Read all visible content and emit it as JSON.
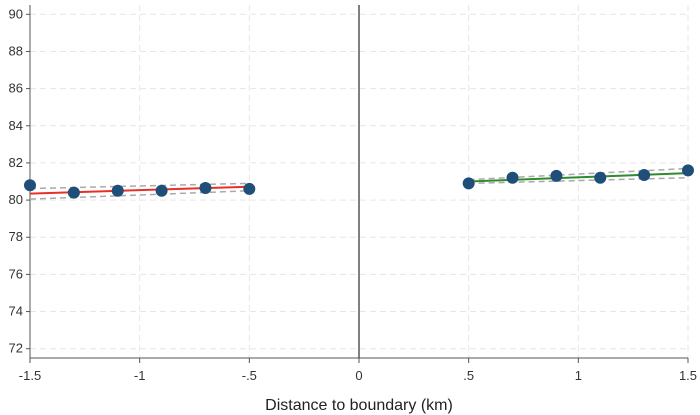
{
  "chart_data": {
    "type": "scatter",
    "title": "",
    "xlabel": "Distance to boundary (km)",
    "ylabel": "",
    "xlim": [
      -1.5,
      1.5
    ],
    "ylim": [
      71.5,
      90.5
    ],
    "x_ticks": [
      -1.5,
      -1,
      -0.5,
      0,
      0.5,
      1,
      1.5
    ],
    "x_tick_labels": [
      "-1.5",
      "-1",
      "-.5",
      "0",
      ".5",
      "1",
      "1.5"
    ],
    "y_ticks": [
      72,
      74,
      76,
      78,
      80,
      82,
      84,
      86,
      88,
      90
    ],
    "y_tick_labels": [
      "72",
      "74",
      "76",
      "78",
      "80",
      "82",
      "84",
      "86",
      "88",
      "90"
    ],
    "grid": true,
    "cutoff_line_x": 0,
    "series": [
      {
        "side": "left",
        "points": [
          {
            "x": -1.5,
            "y": 80.8
          },
          {
            "x": -1.3,
            "y": 80.4
          },
          {
            "x": -1.1,
            "y": 80.5
          },
          {
            "x": -0.9,
            "y": 80.5
          },
          {
            "x": -0.7,
            "y": 80.65
          },
          {
            "x": -0.5,
            "y": 80.6
          }
        ],
        "fit": {
          "x": [
            -1.5,
            -0.5
          ],
          "y": [
            80.35,
            80.72
          ]
        },
        "ci_upper": {
          "x": [
            -1.5,
            -0.5
          ],
          "y": [
            80.62,
            80.9
          ]
        },
        "ci_lower": {
          "x": [
            -1.5,
            -0.5
          ],
          "y": [
            80.05,
            80.5
          ]
        },
        "fit_color": "#e8302a"
      },
      {
        "side": "right",
        "points": [
          {
            "x": 0.5,
            "y": 80.9
          },
          {
            "x": 0.7,
            "y": 81.2
          },
          {
            "x": 0.9,
            "y": 81.3
          },
          {
            "x": 1.1,
            "y": 81.2
          },
          {
            "x": 1.3,
            "y": 81.35
          },
          {
            "x": 1.5,
            "y": 81.6
          }
        ],
        "fit": {
          "x": [
            0.5,
            1.5
          ],
          "y": [
            81.0,
            81.45
          ]
        },
        "ci_upper": {
          "x": [
            0.5,
            1.5
          ],
          "y": [
            81.1,
            81.7
          ]
        },
        "ci_lower": {
          "x": [
            0.5,
            1.5
          ],
          "y": [
            80.9,
            81.2
          ]
        },
        "fit_color": "#2e8b2e"
      }
    ],
    "colors": {
      "marker": "#1f4e79",
      "ci": "#a9a9a9",
      "grid": "#e6e6e6",
      "axis": "#555555",
      "cutoff": "#555555"
    }
  }
}
